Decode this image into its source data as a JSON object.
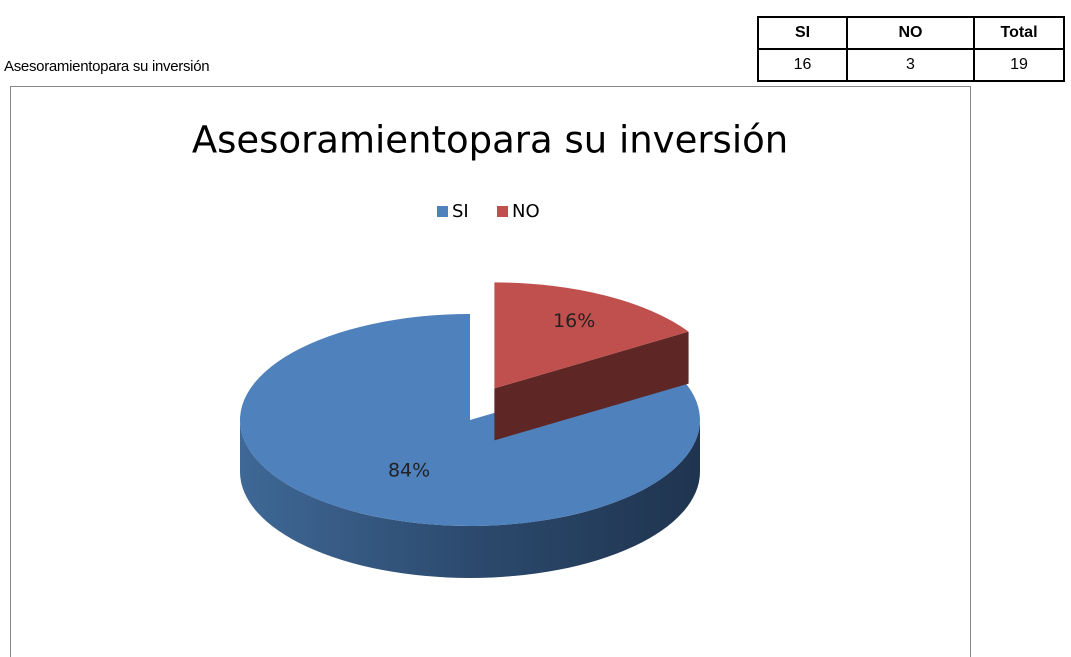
{
  "row_label": "Asesoramientopara su inversión",
  "table": {
    "header": [
      "SI",
      "NO",
      "Total"
    ],
    "rows": [
      [
        "16",
        "3",
        "19"
      ]
    ]
  },
  "chart_data": {
    "type": "pie",
    "title": "Asesoramientopara su inversión",
    "categories": [
      "SI",
      "NO"
    ],
    "values": [
      84,
      16
    ],
    "value_labels": [
      "84%",
      "16%"
    ],
    "colors": [
      "#4f81bd",
      "#c0504d"
    ],
    "legend": "top",
    "exploded": [
      false,
      true
    ]
  }
}
